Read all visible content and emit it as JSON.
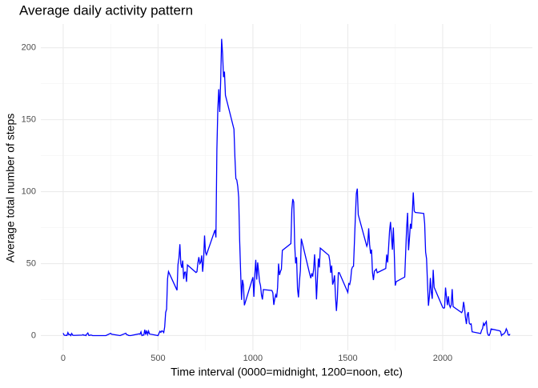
{
  "chart_data": {
    "type": "line",
    "title": "Average daily activity pattern",
    "x_label": "Time interval (0000=midnight, 1200=noon, etc)",
    "y_label": "Average total number of steps",
    "color": "#0000ff",
    "x": [
      0,
      5,
      10,
      15,
      20,
      25,
      30,
      35,
      40,
      45,
      50,
      55,
      100,
      105,
      110,
      115,
      120,
      125,
      130,
      135,
      140,
      145,
      150,
      155,
      200,
      225,
      250,
      255,
      300,
      330,
      335,
      340,
      345,
      355,
      400,
      405,
      410,
      415,
      420,
      425,
      430,
      435,
      440,
      445,
      450,
      455,
      500,
      505,
      510,
      515,
      520,
      525,
      530,
      535,
      540,
      545,
      550,
      555,
      600,
      605,
      610,
      615,
      620,
      625,
      630,
      635,
      640,
      645,
      650,
      655,
      700,
      705,
      710,
      715,
      720,
      725,
      730,
      735,
      740,
      745,
      750,
      755,
      800,
      805,
      810,
      815,
      820,
      825,
      830,
      835,
      840,
      845,
      850,
      855,
      900,
      905,
      910,
      915,
      920,
      925,
      930,
      935,
      940,
      945,
      950,
      955,
      1000,
      1005,
      1010,
      1015,
      1020,
      1025,
      1030,
      1035,
      1040,
      1045,
      1050,
      1055,
      1100,
      1105,
      1110,
      1115,
      1120,
      1125,
      1130,
      1135,
      1140,
      1145,
      1150,
      1155,
      1200,
      1205,
      1210,
      1215,
      1220,
      1225,
      1230,
      1235,
      1240,
      1245,
      1250,
      1255,
      1300,
      1305,
      1310,
      1315,
      1320,
      1325,
      1330,
      1335,
      1340,
      1345,
      1350,
      1355,
      1400,
      1405,
      1410,
      1415,
      1420,
      1425,
      1430,
      1435,
      1440,
      1445,
      1450,
      1455,
      1500,
      1505,
      1510,
      1515,
      1520,
      1525,
      1530,
      1535,
      1540,
      1545,
      1550,
      1555,
      1600,
      1605,
      1610,
      1615,
      1620,
      1625,
      1630,
      1635,
      1640,
      1645,
      1650,
      1655,
      1700,
      1705,
      1710,
      1715,
      1720,
      1725,
      1730,
      1735,
      1740,
      1745,
      1750,
      1755,
      1800,
      1805,
      1810,
      1815,
      1820,
      1825,
      1830,
      1835,
      1840,
      1845,
      1850,
      1855,
      1900,
      1905,
      1910,
      1915,
      1920,
      1925,
      1930,
      1935,
      1940,
      1945,
      1950,
      1955,
      2000,
      2005,
      2010,
      2015,
      2020,
      2025,
      2030,
      2035,
      2040,
      2045,
      2050,
      2055,
      2100,
      2105,
      2110,
      2115,
      2120,
      2125,
      2130,
      2135,
      2140,
      2145,
      2150,
      2155,
      2200,
      2205,
      2210,
      2215,
      2220,
      2225,
      2230,
      2235,
      2240,
      2245,
      2250,
      2255,
      2300,
      2305,
      2310,
      2315,
      2320,
      2325,
      2330,
      2335,
      2340,
      2345,
      2350,
      2355
    ],
    "values": [
      1.72,
      0.34,
      0.13,
      0.15,
      0.08,
      2.09,
      0.53,
      0.87,
      0,
      1.47,
      0.3,
      0.13,
      0.32,
      0.68,
      0.15,
      0.34,
      0,
      1.11,
      1.83,
      0.17,
      0.17,
      0.38,
      0.26,
      0,
      0,
      0,
      1.55,
      0.94,
      0,
      1.62,
      0.58,
      0.49,
      0.08,
      0,
      1.19,
      0.94,
      2.57,
      0,
      0.34,
      0.36,
      4.11,
      0.66,
      3.49,
      0.83,
      3.11,
      1.11,
      0,
      1.57,
      3,
      2.25,
      3.32,
      2.96,
      2.09,
      6.06,
      16.02,
      18.34,
      39.45,
      44.49,
      31.49,
      49.26,
      53.77,
      63.45,
      49.96,
      47.08,
      52.15,
      39.34,
      44.02,
      44.17,
      37.36,
      49.04,
      43.81,
      44.38,
      50.51,
      54.51,
      49.92,
      50.98,
      55.68,
      44.32,
      52.26,
      69.55,
      57.85,
      56.15,
      73.38,
      68.21,
      129.43,
      157.53,
      171.15,
      155.4,
      177.3,
      206.17,
      195.92,
      179.57,
      183.4,
      167.02,
      143.45,
      124.04,
      109.11,
      108.11,
      103.72,
      95.97,
      66.21,
      45.23,
      24.79,
      38.75,
      34.98,
      21.06,
      40.57,
      26.98,
      42.42,
      52.66,
      38.92,
      50.79,
      44.28,
      37.42,
      34.7,
      28.34,
      25.09,
      31.94,
      31.36,
      29.68,
      21.32,
      25.55,
      28.38,
      26.47,
      33.43,
      49.98,
      42.04,
      44.6,
      46.04,
      59.19,
      63.87,
      87.7,
      94.85,
      92.77,
      63.4,
      50.17,
      54.47,
      32.42,
      26.53,
      37.74,
      45.06,
      67.28,
      42.34,
      39.89,
      43.26,
      40.98,
      46.25,
      56.43,
      42.75,
      25.13,
      39.96,
      53.55,
      47.32,
      60.81,
      55.75,
      51.96,
      43.58,
      48.7,
      35.47,
      37.55,
      41.85,
      27.51,
      17.11,
      26.08,
      43.62,
      43.77,
      30.02,
      36.08,
      35.49,
      38.85,
      45.96,
      47.75,
      48.13,
      65.32,
      82.91,
      98.66,
      102.11,
      83.96,
      62.13,
      64.13,
      74.55,
      63.17,
      56.91,
      59.77,
      43.87,
      38.57,
      44.66,
      45.45,
      46.21,
      43.68,
      46.62,
      56.3,
      50.72,
      61.23,
      72.72,
      78.94,
      68.94,
      59.66,
      75.09,
      56.51,
      34.77,
      37.45,
      40.68,
      58.02,
      74.7,
      85.32,
      59.26,
      67.77,
      77.7,
      74.25,
      85.34,
      99.45,
      86.58,
      85.6,
      84.87,
      77.83,
      58.04,
      53.36,
      36.33,
      20.72,
      27.4,
      40.02,
      30.21,
      25.55,
      45.66,
      33.53,
      19.62,
      19.02,
      19.34,
      33.34,
      26.81,
      21.17,
      27.3,
      21.34,
      19.55,
      21.32,
      32.3,
      20.15,
      15.94,
      17.23,
      23.45,
      19.25,
      12.45,
      8.02,
      14.66,
      16.3,
      8.68,
      7.79,
      8.13,
      2.62,
      1.45,
      3.68,
      4.81,
      8.51,
      7.08,
      8.7,
      9.75,
      2.21,
      0.32,
      0.11,
      1.6,
      4.6,
      3.3,
      2.85,
      0,
      0.83,
      0.96,
      1.58,
      2.6,
      4.7,
      3.3,
      0.64,
      0.23,
      1.08
    ],
    "xlim": [
      -117.75,
      2472.75
    ],
    "ylim": [
      -10.3,
      216.5
    ],
    "xticks": [
      0,
      500,
      1000,
      1500,
      2000
    ],
    "yticks": [
      0,
      50,
      100,
      150,
      200
    ],
    "x_minor_grid": [
      250,
      750,
      1250,
      1750,
      2250
    ],
    "y_minor_grid": [
      25,
      75,
      125,
      175
    ],
    "grid": true
  }
}
